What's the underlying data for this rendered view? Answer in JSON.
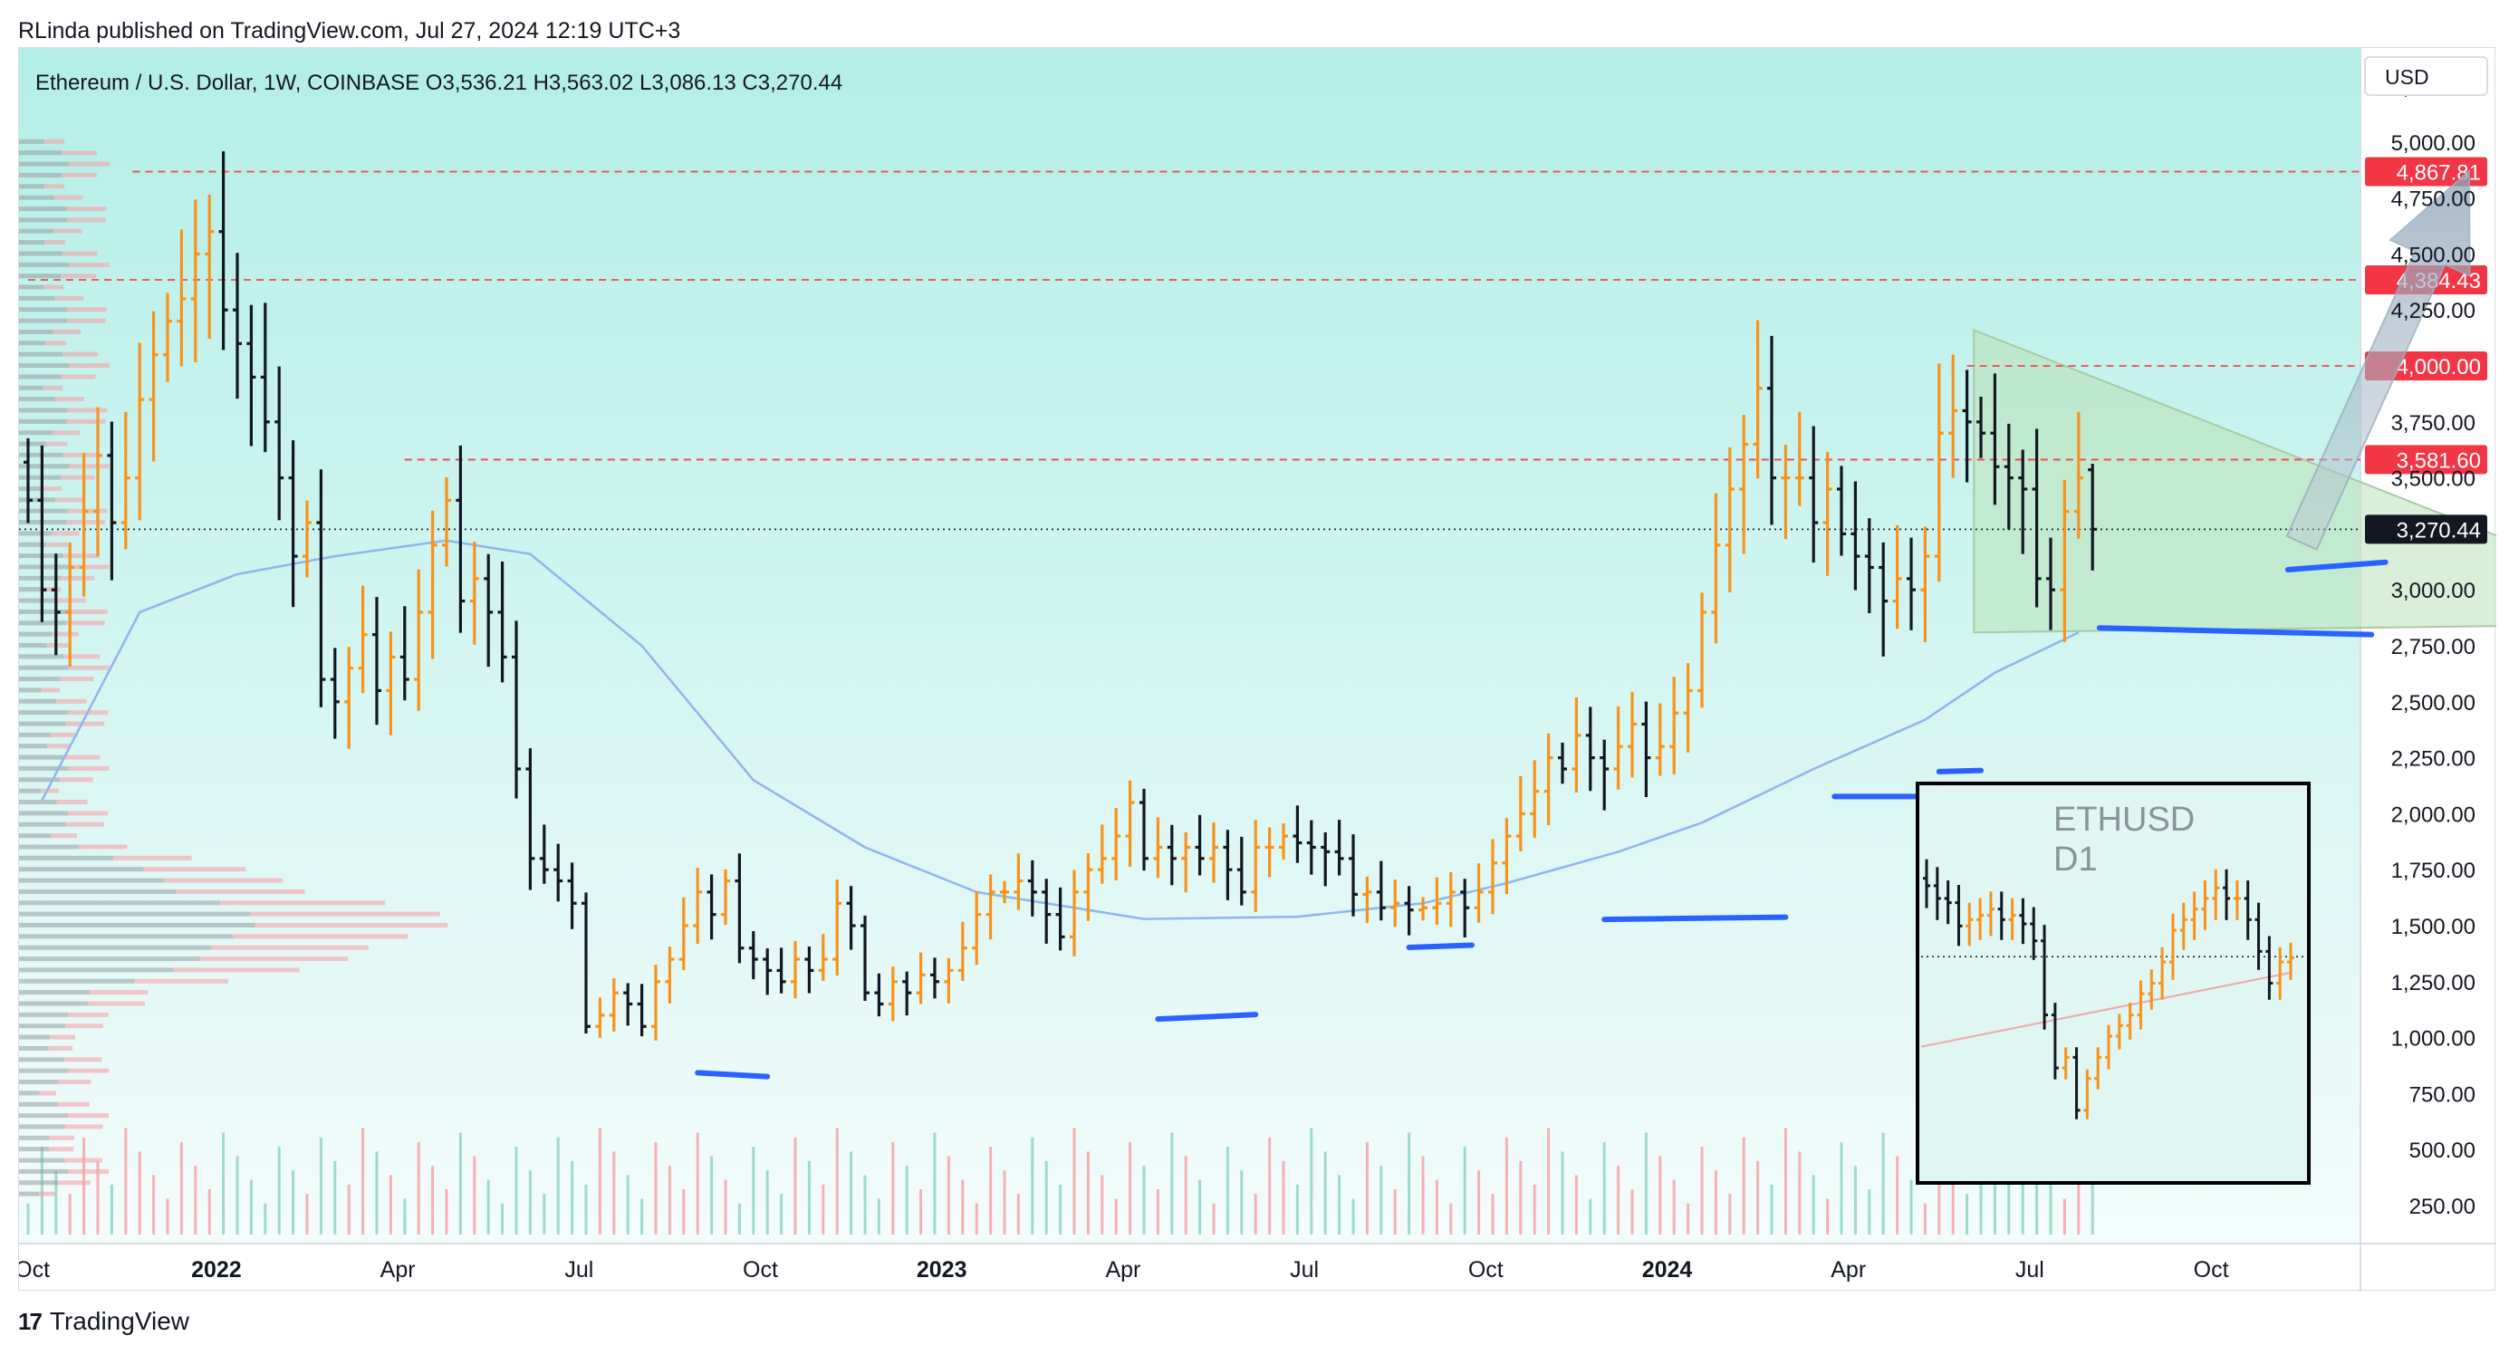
{
  "header": "RLinda published on TradingView.com, Jul 27, 2024 12:19 UTC+3",
  "footer": {
    "brand": "TradingView",
    "logo_glyph": "17"
  },
  "chart_data": {
    "type": "ohlc",
    "symbol_line": "Ethereum / U.S. Dollar, 1W, COINBASE  O3,536.21  H3,563.02  L3,086.13  C3,270.44",
    "currency": "USD",
    "ylim": [
      80,
      5420
    ],
    "y_ticks": [
      {
        "v": 5250,
        "label": "5,250.00"
      },
      {
        "v": 5000,
        "label": "5,000.00"
      },
      {
        "v": 4750,
        "label": "4,750.00"
      },
      {
        "v": 4500,
        "label": "4,500.00"
      },
      {
        "v": 4250,
        "label": "4,250.00"
      },
      {
        "v": 3750,
        "label": "3,750.00"
      },
      {
        "v": 3500,
        "label": "3,500.00"
      },
      {
        "v": 3000,
        "label": "3,000.00"
      },
      {
        "v": 2750,
        "label": "2,750.00"
      },
      {
        "v": 2500,
        "label": "2,500.00"
      },
      {
        "v": 2250,
        "label": "2,250.00"
      },
      {
        "v": 2000,
        "label": "2,000.00"
      },
      {
        "v": 1750,
        "label": "1,750.00"
      },
      {
        "v": 1500,
        "label": "1,500.00"
      },
      {
        "v": 1250,
        "label": "1,250.00"
      },
      {
        "v": 1000,
        "label": "1,000.00"
      },
      {
        "v": 750,
        "label": "750.00"
      },
      {
        "v": 500,
        "label": "500.00"
      },
      {
        "v": 250,
        "label": "250.00"
      }
    ],
    "x_ticks": [
      {
        "label": "Oct",
        "week": 0.3,
        "bold": false
      },
      {
        "label": "2022",
        "week": 13.5,
        "bold": true
      },
      {
        "label": "Apr",
        "week": 26.5,
        "bold": false
      },
      {
        "label": "Jul",
        "week": 39.5,
        "bold": false
      },
      {
        "label": "Oct",
        "week": 52.5,
        "bold": false
      },
      {
        "label": "2023",
        "week": 65.5,
        "bold": true
      },
      {
        "label": "Apr",
        "week": 78.5,
        "bold": false
      },
      {
        "label": "Jul",
        "week": 91.5,
        "bold": false
      },
      {
        "label": "Oct",
        "week": 104.5,
        "bold": false
      },
      {
        "label": "2024",
        "week": 117.5,
        "bold": true
      },
      {
        "label": "Apr",
        "week": 130.5,
        "bold": false
      },
      {
        "label": "Jul",
        "week": 143.5,
        "bold": false
      },
      {
        "label": "Oct",
        "week": 156.5,
        "bold": false
      }
    ],
    "levels": [
      {
        "value": 4867.81,
        "label": "4,867.81",
        "color": "#f23645",
        "line_x0": 7.5
      },
      {
        "value": 4384.43,
        "label": "4,384.43",
        "color": "#f23645",
        "line_x0": 0
      },
      {
        "value": 4000.0,
        "label": "4,000.00",
        "color": "#f23645",
        "line_x0": 139
      },
      {
        "value": 3581.6,
        "label": "3,581.60",
        "color": "#f23645",
        "line_x0": 27
      },
      {
        "value": 3270.44,
        "label": "3,270.44",
        "color": "#131722",
        "line_x0": 0
      }
    ],
    "closes": [
      3400,
      3000,
      2900,
      3100,
      3350,
      3600,
      3300,
      3500,
      3850,
      4050,
      4200,
      4300,
      4500,
      4600,
      4250,
      4100,
      3950,
      3750,
      3500,
      3150,
      3300,
      2600,
      2500,
      2650,
      2800,
      2550,
      2700,
      2600,
      2900,
      3200,
      3400,
      2950,
      3050,
      2900,
      2700,
      2200,
      1800,
      1750,
      1700,
      1600,
      1050,
      1100,
      1200,
      1150,
      1050,
      1250,
      1350,
      1500,
      1650,
      1550,
      1700,
      1400,
      1350,
      1300,
      1250,
      1350,
      1300,
      1350,
      1600,
      1500,
      1200,
      1150,
      1250,
      1200,
      1280,
      1250,
      1300,
      1400,
      1550,
      1650,
      1650,
      1700,
      1650,
      1550,
      1450,
      1650,
      1750,
      1800,
      1900,
      2050,
      1800,
      1850,
      1800,
      1850,
      1800,
      1850,
      1750,
      1650,
      1850,
      1850,
      1900,
      1870,
      1850,
      1830,
      1800,
      1640,
      1650,
      1580,
      1600,
      1570,
      1580,
      1600,
      1650,
      1580,
      1650,
      1780,
      1900,
      2000,
      2100,
      2250,
      2200,
      2350,
      2250,
      2200,
      2300,
      2400,
      2250,
      2300,
      2450,
      2550,
      2900,
      3200,
      3450,
      3650,
      3900,
      3500,
      3500,
      3500,
      3300,
      3450,
      3250,
      3150,
      3100,
      2950,
      3050,
      3000,
      3150,
      3700,
      3800,
      3750,
      3700,
      3550,
      3500,
      3450,
      3050,
      3000,
      3350,
      3500,
      3270.44
    ],
    "wick": 0.06,
    "bar_colors": {
      "up": "#f7931a",
      "down": "#131722"
    },
    "ma": {
      "name": "MA",
      "color": "#8fb6ec",
      "points": [
        [
          1,
          2060
        ],
        [
          8,
          2900
        ],
        [
          15,
          3070
        ],
        [
          22,
          3150
        ],
        [
          30,
          3220
        ],
        [
          36,
          3160
        ],
        [
          44,
          2750
        ],
        [
          52,
          2150
        ],
        [
          60,
          1850
        ],
        [
          68,
          1650
        ],
        [
          80,
          1530
        ],
        [
          91,
          1540
        ],
        [
          100,
          1600
        ],
        [
          106,
          1690
        ],
        [
          114,
          1830
        ],
        [
          120,
          1960
        ],
        [
          128,
          2200
        ],
        [
          136,
          2420
        ],
        [
          141,
          2630
        ],
        [
          147,
          2810
        ]
      ]
    },
    "triangle": {
      "points": [
        [
          139.5,
          4160
        ],
        [
          193,
          2850
        ],
        [
          139.5,
          2810
        ]
      ],
      "fill": "#b9e2b6",
      "stroke": "#a9c9a7"
    },
    "support_lines": {
      "color": "#2962ff",
      "segments": [
        [
          [
            48,
            843
          ],
          [
            53,
            826
          ]
        ],
        [
          [
            81,
            1083
          ],
          [
            88,
            1103
          ]
        ],
        [
          [
            99,
            1403
          ],
          [
            103.5,
            1413
          ]
        ],
        [
          [
            113,
            1528
          ],
          [
            126,
            1538
          ]
        ],
        [
          [
            129.5,
            2077
          ],
          [
            135.5,
            2077
          ]
        ],
        [
          [
            137,
            2188
          ],
          [
            140,
            2193
          ]
        ],
        [
          [
            148.5,
            2830
          ],
          [
            168,
            2800
          ]
        ],
        [
          [
            162,
            3090
          ],
          [
            169,
            3123
          ]
        ]
      ]
    },
    "arrow": {
      "from": [
        163,
        3210
      ],
      "to": [
        175,
        4870
      ],
      "color": "#8ea3b8"
    },
    "volume": {
      "max_height_frac": 0.075,
      "up_color": "#f7a1a8",
      "down_color": "#8fd4c3"
    },
    "inset": {
      "title": "ETHUSD",
      "subtitle": "D1",
      "level": 1425,
      "closes": [
        1760,
        1700,
        1680,
        1570,
        1600,
        1620,
        1650,
        1600,
        1620,
        1580,
        1500,
        1150,
        900,
        950,
        700,
        850,
        950,
        1050,
        1100,
        1150,
        1250,
        1300,
        1400,
        1550,
        1600,
        1650,
        1700,
        1750,
        1700,
        1700,
        1600,
        1450,
        1300,
        1400,
        1420
      ]
    },
    "volume_profile": {
      "note": "horizontal volume histogram on left edge"
    }
  }
}
